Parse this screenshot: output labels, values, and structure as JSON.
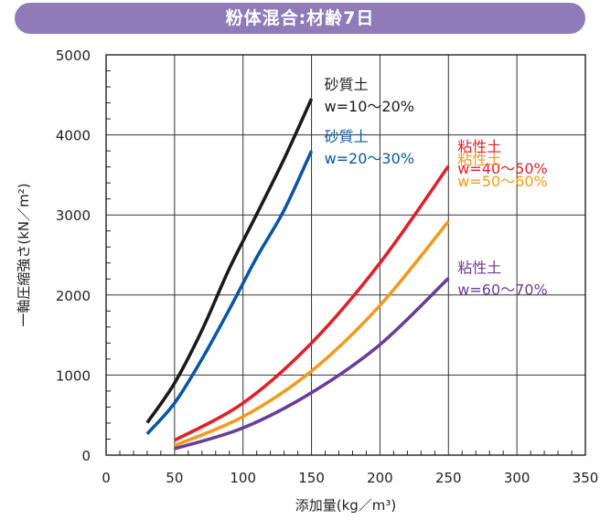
{
  "chart_data": {
    "type": "line",
    "title": "粉体混合:材齢7日",
    "xlabel": "添加量(kg／m³)",
    "ylabel": "一軸圧縮強さ(kN／m²)",
    "xlim": [
      0,
      350
    ],
    "ylim": [
      0,
      5000
    ],
    "x_ticks": [
      "0",
      "50",
      "100",
      "150",
      "200",
      "250",
      "300",
      "350"
    ],
    "y_ticks": [
      "0",
      "1000",
      "2000",
      "3000",
      "4000",
      "5000"
    ],
    "grid": true,
    "series": [
      {
        "name_lines": [
          "砂質土",
          "w=10〜20%"
        ],
        "color": "#1a1a1a",
        "x": [
          30,
          50,
          70,
          90,
          110,
          130,
          150
        ],
        "y": [
          405,
          900,
          1560,
          2330,
          3010,
          3700,
          4450
        ]
      },
      {
        "name_lines": [
          "砂質土",
          "w=20〜30%"
        ],
        "color": "#0b56a4",
        "x": [
          30,
          50,
          70,
          90,
          110,
          130,
          150
        ],
        "y": [
          265,
          650,
          1200,
          1820,
          2470,
          3060,
          3800
        ]
      },
      {
        "name_lines": [
          "粘性土",
          "w=40〜50%"
        ],
        "color": "#e0202a",
        "x": [
          50,
          100,
          150,
          200,
          250
        ],
        "y": [
          185,
          650,
          1400,
          2400,
          3610
        ]
      },
      {
        "name_lines": [
          "粘性土",
          "w=50〜60%"
        ],
        "color": "#f39a1e",
        "x": [
          50,
          100,
          150,
          200,
          250
        ],
        "y": [
          120,
          480,
          1050,
          1870,
          2920
        ]
      },
      {
        "name_lines": [
          "粘性土",
          "w=60〜70%"
        ],
        "color": "#6a3d98",
        "x": [
          50,
          100,
          150,
          200,
          250
        ],
        "y": [
          80,
          340,
          780,
          1380,
          2210
        ]
      }
    ]
  }
}
